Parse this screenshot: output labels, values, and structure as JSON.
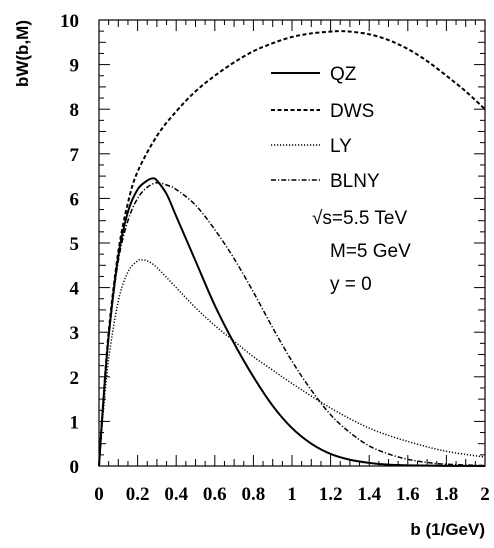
{
  "chart_data": {
    "type": "line",
    "xlabel": "b (1/GeV)",
    "ylabel": "bW(b,M)",
    "xlim": [
      0,
      2
    ],
    "ylim": [
      0,
      10
    ],
    "x_ticks": [
      "0",
      "0.2",
      "0.4",
      "0.6",
      "0.8",
      "1",
      "1.2",
      "1.4",
      "1.6",
      "1.8",
      "2"
    ],
    "y_ticks": [
      "0",
      "1",
      "2",
      "3",
      "4",
      "5",
      "6",
      "7",
      "8",
      "9",
      "10"
    ],
    "grid": false,
    "legend_position": "top-right",
    "annotations": [
      "√s=5.5 TeV",
      "M=5 GeV",
      "y = 0"
    ],
    "series": [
      {
        "name": "QZ",
        "style": "solid",
        "x": [
          0,
          0.02,
          0.05,
          0.1,
          0.15,
          0.2,
          0.25,
          0.28,
          0.3,
          0.35,
          0.4,
          0.5,
          0.6,
          0.7,
          0.8,
          0.9,
          1.0,
          1.1,
          1.2,
          1.3,
          1.4,
          1.5,
          1.6,
          1.8,
          2.0
        ],
        "values": [
          0,
          1.3,
          2.9,
          4.7,
          5.7,
          6.2,
          6.4,
          6.45,
          6.4,
          6.1,
          5.6,
          4.6,
          3.6,
          2.75,
          2.0,
          1.35,
          0.85,
          0.5,
          0.27,
          0.14,
          0.07,
          0.03,
          0.015,
          0.004,
          0
        ]
      },
      {
        "name": "DWS",
        "style": "dashed",
        "x": [
          0,
          0.02,
          0.05,
          0.1,
          0.15,
          0.2,
          0.3,
          0.4,
          0.5,
          0.6,
          0.7,
          0.8,
          0.9,
          1.0,
          1.1,
          1.2,
          1.25,
          1.3,
          1.4,
          1.5,
          1.6,
          1.7,
          1.8,
          1.9,
          2.0
        ],
        "values": [
          0,
          1.3,
          3.0,
          4.8,
          5.9,
          6.6,
          7.4,
          7.95,
          8.4,
          8.75,
          9.05,
          9.3,
          9.48,
          9.62,
          9.7,
          9.74,
          9.75,
          9.74,
          9.68,
          9.55,
          9.35,
          9.08,
          8.75,
          8.4,
          8.0
        ]
      },
      {
        "name": "LY",
        "style": "dotted",
        "x": [
          0,
          0.02,
          0.05,
          0.1,
          0.15,
          0.2,
          0.22,
          0.25,
          0.3,
          0.4,
          0.5,
          0.6,
          0.7,
          0.8,
          0.9,
          1.0,
          1.2,
          1.4,
          1.6,
          1.8,
          2.0
        ],
        "values": [
          0,
          1.1,
          2.4,
          3.7,
          4.35,
          4.6,
          4.62,
          4.6,
          4.45,
          4.0,
          3.55,
          3.15,
          2.8,
          2.45,
          2.15,
          1.85,
          1.3,
          0.85,
          0.55,
          0.33,
          0.2
        ]
      },
      {
        "name": "BLNY",
        "style": "dashdot",
        "x": [
          0,
          0.02,
          0.05,
          0.1,
          0.15,
          0.2,
          0.25,
          0.3,
          0.35,
          0.4,
          0.5,
          0.6,
          0.7,
          0.8,
          0.9,
          1.0,
          1.1,
          1.2,
          1.3,
          1.4,
          1.5,
          1.6,
          1.7,
          1.8,
          2.0
        ],
        "values": [
          0,
          1.3,
          2.9,
          4.6,
          5.5,
          6.0,
          6.25,
          6.35,
          6.3,
          6.2,
          5.85,
          5.3,
          4.65,
          3.9,
          3.1,
          2.35,
          1.7,
          1.15,
          0.75,
          0.45,
          0.27,
          0.15,
          0.08,
          0.04,
          0.01
        ]
      }
    ]
  }
}
